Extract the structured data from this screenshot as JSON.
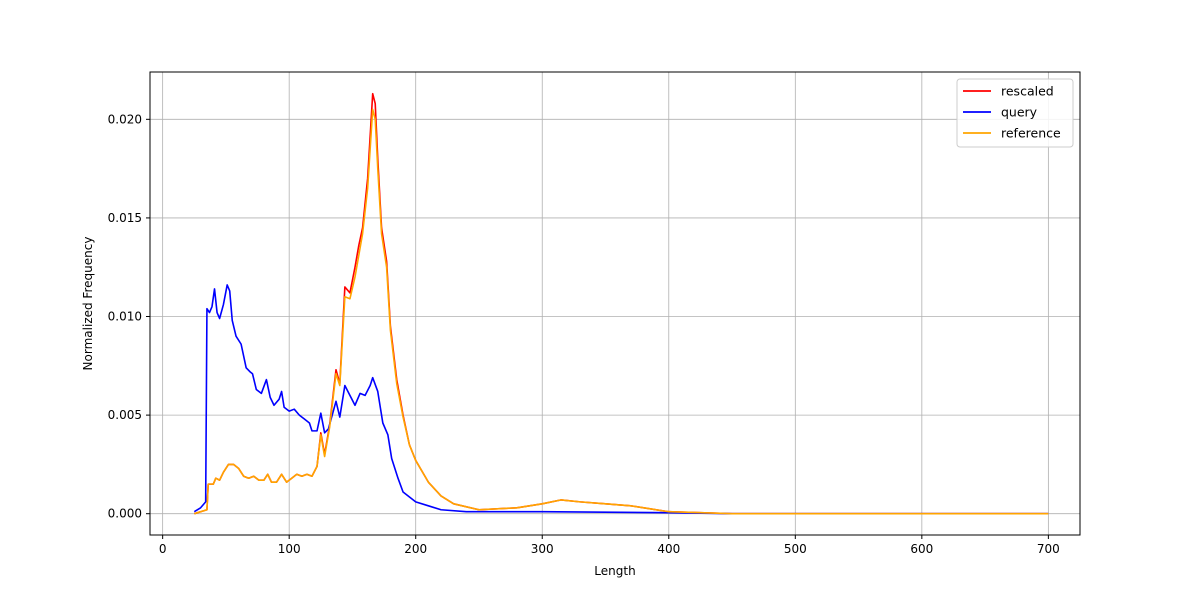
{
  "chart_data": {
    "type": "line",
    "title": "",
    "xlabel": "Length",
    "ylabel": "Normalized Frequency",
    "xlim": [
      -10,
      725
    ],
    "ylim": [
      -0.00108,
      0.0224
    ],
    "xticks": [
      0,
      100,
      200,
      300,
      400,
      500,
      600,
      700
    ],
    "yticks": [
      0.0,
      0.005,
      0.01,
      0.015,
      0.02
    ],
    "ytick_labels": [
      "0.000",
      "0.005",
      "0.010",
      "0.015",
      "0.020"
    ],
    "grid": true,
    "legend_position": "top-right",
    "series": [
      {
        "name": "rescaled",
        "color": "#ff0000",
        "points": [
          [
            25,
            0.0
          ],
          [
            30,
            0.0001
          ],
          [
            35,
            0.0002
          ],
          [
            36,
            0.0015
          ],
          [
            40,
            0.0015
          ],
          [
            42,
            0.0018
          ],
          [
            45,
            0.0017
          ],
          [
            48,
            0.0021
          ],
          [
            52,
            0.0025
          ],
          [
            56,
            0.0025
          ],
          [
            60,
            0.0023
          ],
          [
            64,
            0.0019
          ],
          [
            68,
            0.0018
          ],
          [
            72,
            0.0019
          ],
          [
            76,
            0.0017
          ],
          [
            80,
            0.0017
          ],
          [
            83,
            0.002
          ],
          [
            86,
            0.0016
          ],
          [
            90,
            0.0016
          ],
          [
            94,
            0.002
          ],
          [
            98,
            0.0016
          ],
          [
            102,
            0.0018
          ],
          [
            106,
            0.002
          ],
          [
            110,
            0.0019
          ],
          [
            114,
            0.002
          ],
          [
            118,
            0.0019
          ],
          [
            122,
            0.0024
          ],
          [
            125,
            0.0041
          ],
          [
            128,
            0.003
          ],
          [
            132,
            0.0045
          ],
          [
            137,
            0.0073
          ],
          [
            140,
            0.0066
          ],
          [
            144,
            0.0115
          ],
          [
            148,
            0.0112
          ],
          [
            152,
            0.0125
          ],
          [
            155,
            0.0136
          ],
          [
            158,
            0.0145
          ],
          [
            162,
            0.017
          ],
          [
            166,
            0.0213
          ],
          [
            168,
            0.0208
          ],
          [
            170,
            0.018
          ],
          [
            173,
            0.0145
          ],
          [
            177,
            0.0128
          ],
          [
            180,
            0.0095
          ],
          [
            185,
            0.0068
          ],
          [
            190,
            0.005
          ],
          [
            195,
            0.0035
          ],
          [
            200,
            0.0027
          ],
          [
            210,
            0.0016
          ],
          [
            220,
            0.0009
          ],
          [
            230,
            0.0005
          ],
          [
            250,
            0.0002
          ],
          [
            280,
            0.0003
          ],
          [
            300,
            0.0005
          ],
          [
            315,
            0.0007
          ],
          [
            330,
            0.0006
          ],
          [
            350,
            0.0005
          ],
          [
            370,
            0.0004
          ],
          [
            400,
            0.0001
          ],
          [
            450,
            0.0
          ],
          [
            700,
            0.0
          ]
        ]
      },
      {
        "name": "query",
        "color": "#0000ff",
        "points": [
          [
            25,
            0.0001
          ],
          [
            30,
            0.0003
          ],
          [
            34,
            0.0006
          ],
          [
            35,
            0.0104
          ],
          [
            37,
            0.0102
          ],
          [
            39,
            0.0105
          ],
          [
            41,
            0.0114
          ],
          [
            43,
            0.0102
          ],
          [
            45,
            0.0099
          ],
          [
            48,
            0.0106
          ],
          [
            51,
            0.0116
          ],
          [
            53,
            0.0113
          ],
          [
            55,
            0.0098
          ],
          [
            58,
            0.009
          ],
          [
            62,
            0.0086
          ],
          [
            66,
            0.0074
          ],
          [
            69,
            0.0072
          ],
          [
            71,
            0.0071
          ],
          [
            74,
            0.0063
          ],
          [
            78,
            0.0061
          ],
          [
            82,
            0.0068
          ],
          [
            85,
            0.0059
          ],
          [
            88,
            0.0055
          ],
          [
            92,
            0.0058
          ],
          [
            94,
            0.0062
          ],
          [
            96,
            0.0054
          ],
          [
            100,
            0.0052
          ],
          [
            104,
            0.0053
          ],
          [
            108,
            0.005
          ],
          [
            112,
            0.0048
          ],
          [
            116,
            0.0046
          ],
          [
            118,
            0.0042
          ],
          [
            122,
            0.0042
          ],
          [
            125,
            0.0051
          ],
          [
            128,
            0.0041
          ],
          [
            131,
            0.0043
          ],
          [
            134,
            0.005
          ],
          [
            137,
            0.0057
          ],
          [
            140,
            0.0049
          ],
          [
            144,
            0.0065
          ],
          [
            148,
            0.006
          ],
          [
            152,
            0.0055
          ],
          [
            156,
            0.0061
          ],
          [
            160,
            0.006
          ],
          [
            164,
            0.0065
          ],
          [
            166,
            0.0069
          ],
          [
            170,
            0.0062
          ],
          [
            174,
            0.0046
          ],
          [
            178,
            0.004
          ],
          [
            181,
            0.0028
          ],
          [
            186,
            0.0018
          ],
          [
            190,
            0.0011
          ],
          [
            200,
            0.0006
          ],
          [
            210,
            0.0004
          ],
          [
            220,
            0.0002
          ],
          [
            240,
            0.0001
          ],
          [
            300,
            0.0001
          ],
          [
            400,
            5e-05
          ],
          [
            450,
            0.0
          ],
          [
            700,
            0.0
          ]
        ]
      },
      {
        "name": "reference",
        "color": "#ffa500",
        "points": [
          [
            25,
            0.0
          ],
          [
            30,
            0.0001
          ],
          [
            35,
            0.0002
          ],
          [
            36,
            0.0015
          ],
          [
            40,
            0.0015
          ],
          [
            42,
            0.0018
          ],
          [
            45,
            0.0017
          ],
          [
            48,
            0.0021
          ],
          [
            52,
            0.0025
          ],
          [
            56,
            0.0025
          ],
          [
            60,
            0.0023
          ],
          [
            64,
            0.0019
          ],
          [
            68,
            0.0018
          ],
          [
            72,
            0.0019
          ],
          [
            76,
            0.0017
          ],
          [
            80,
            0.0017
          ],
          [
            83,
            0.002
          ],
          [
            86,
            0.0016
          ],
          [
            90,
            0.0016
          ],
          [
            94,
            0.002
          ],
          [
            98,
            0.0016
          ],
          [
            102,
            0.0018
          ],
          [
            106,
            0.002
          ],
          [
            110,
            0.0019
          ],
          [
            114,
            0.002
          ],
          [
            118,
            0.0019
          ],
          [
            122,
            0.0024
          ],
          [
            125,
            0.004
          ],
          [
            128,
            0.0029
          ],
          [
            132,
            0.0044
          ],
          [
            137,
            0.0071
          ],
          [
            140,
            0.0065
          ],
          [
            144,
            0.011
          ],
          [
            148,
            0.0109
          ],
          [
            152,
            0.012
          ],
          [
            155,
            0.0131
          ],
          [
            158,
            0.0142
          ],
          [
            162,
            0.0165
          ],
          [
            166,
            0.0205
          ],
          [
            168,
            0.02
          ],
          [
            170,
            0.0175
          ],
          [
            173,
            0.0142
          ],
          [
            177,
            0.0125
          ],
          [
            180,
            0.0093
          ],
          [
            185,
            0.0066
          ],
          [
            190,
            0.0049
          ],
          [
            195,
            0.0035
          ],
          [
            200,
            0.0027
          ],
          [
            210,
            0.0016
          ],
          [
            220,
            0.0009
          ],
          [
            230,
            0.0005
          ],
          [
            250,
            0.0002
          ],
          [
            280,
            0.0003
          ],
          [
            300,
            0.0005
          ],
          [
            315,
            0.0007
          ],
          [
            330,
            0.0006
          ],
          [
            350,
            0.0005
          ],
          [
            370,
            0.0004
          ],
          [
            400,
            0.0001
          ],
          [
            450,
            0.0
          ],
          [
            700,
            0.0
          ]
        ]
      }
    ]
  }
}
